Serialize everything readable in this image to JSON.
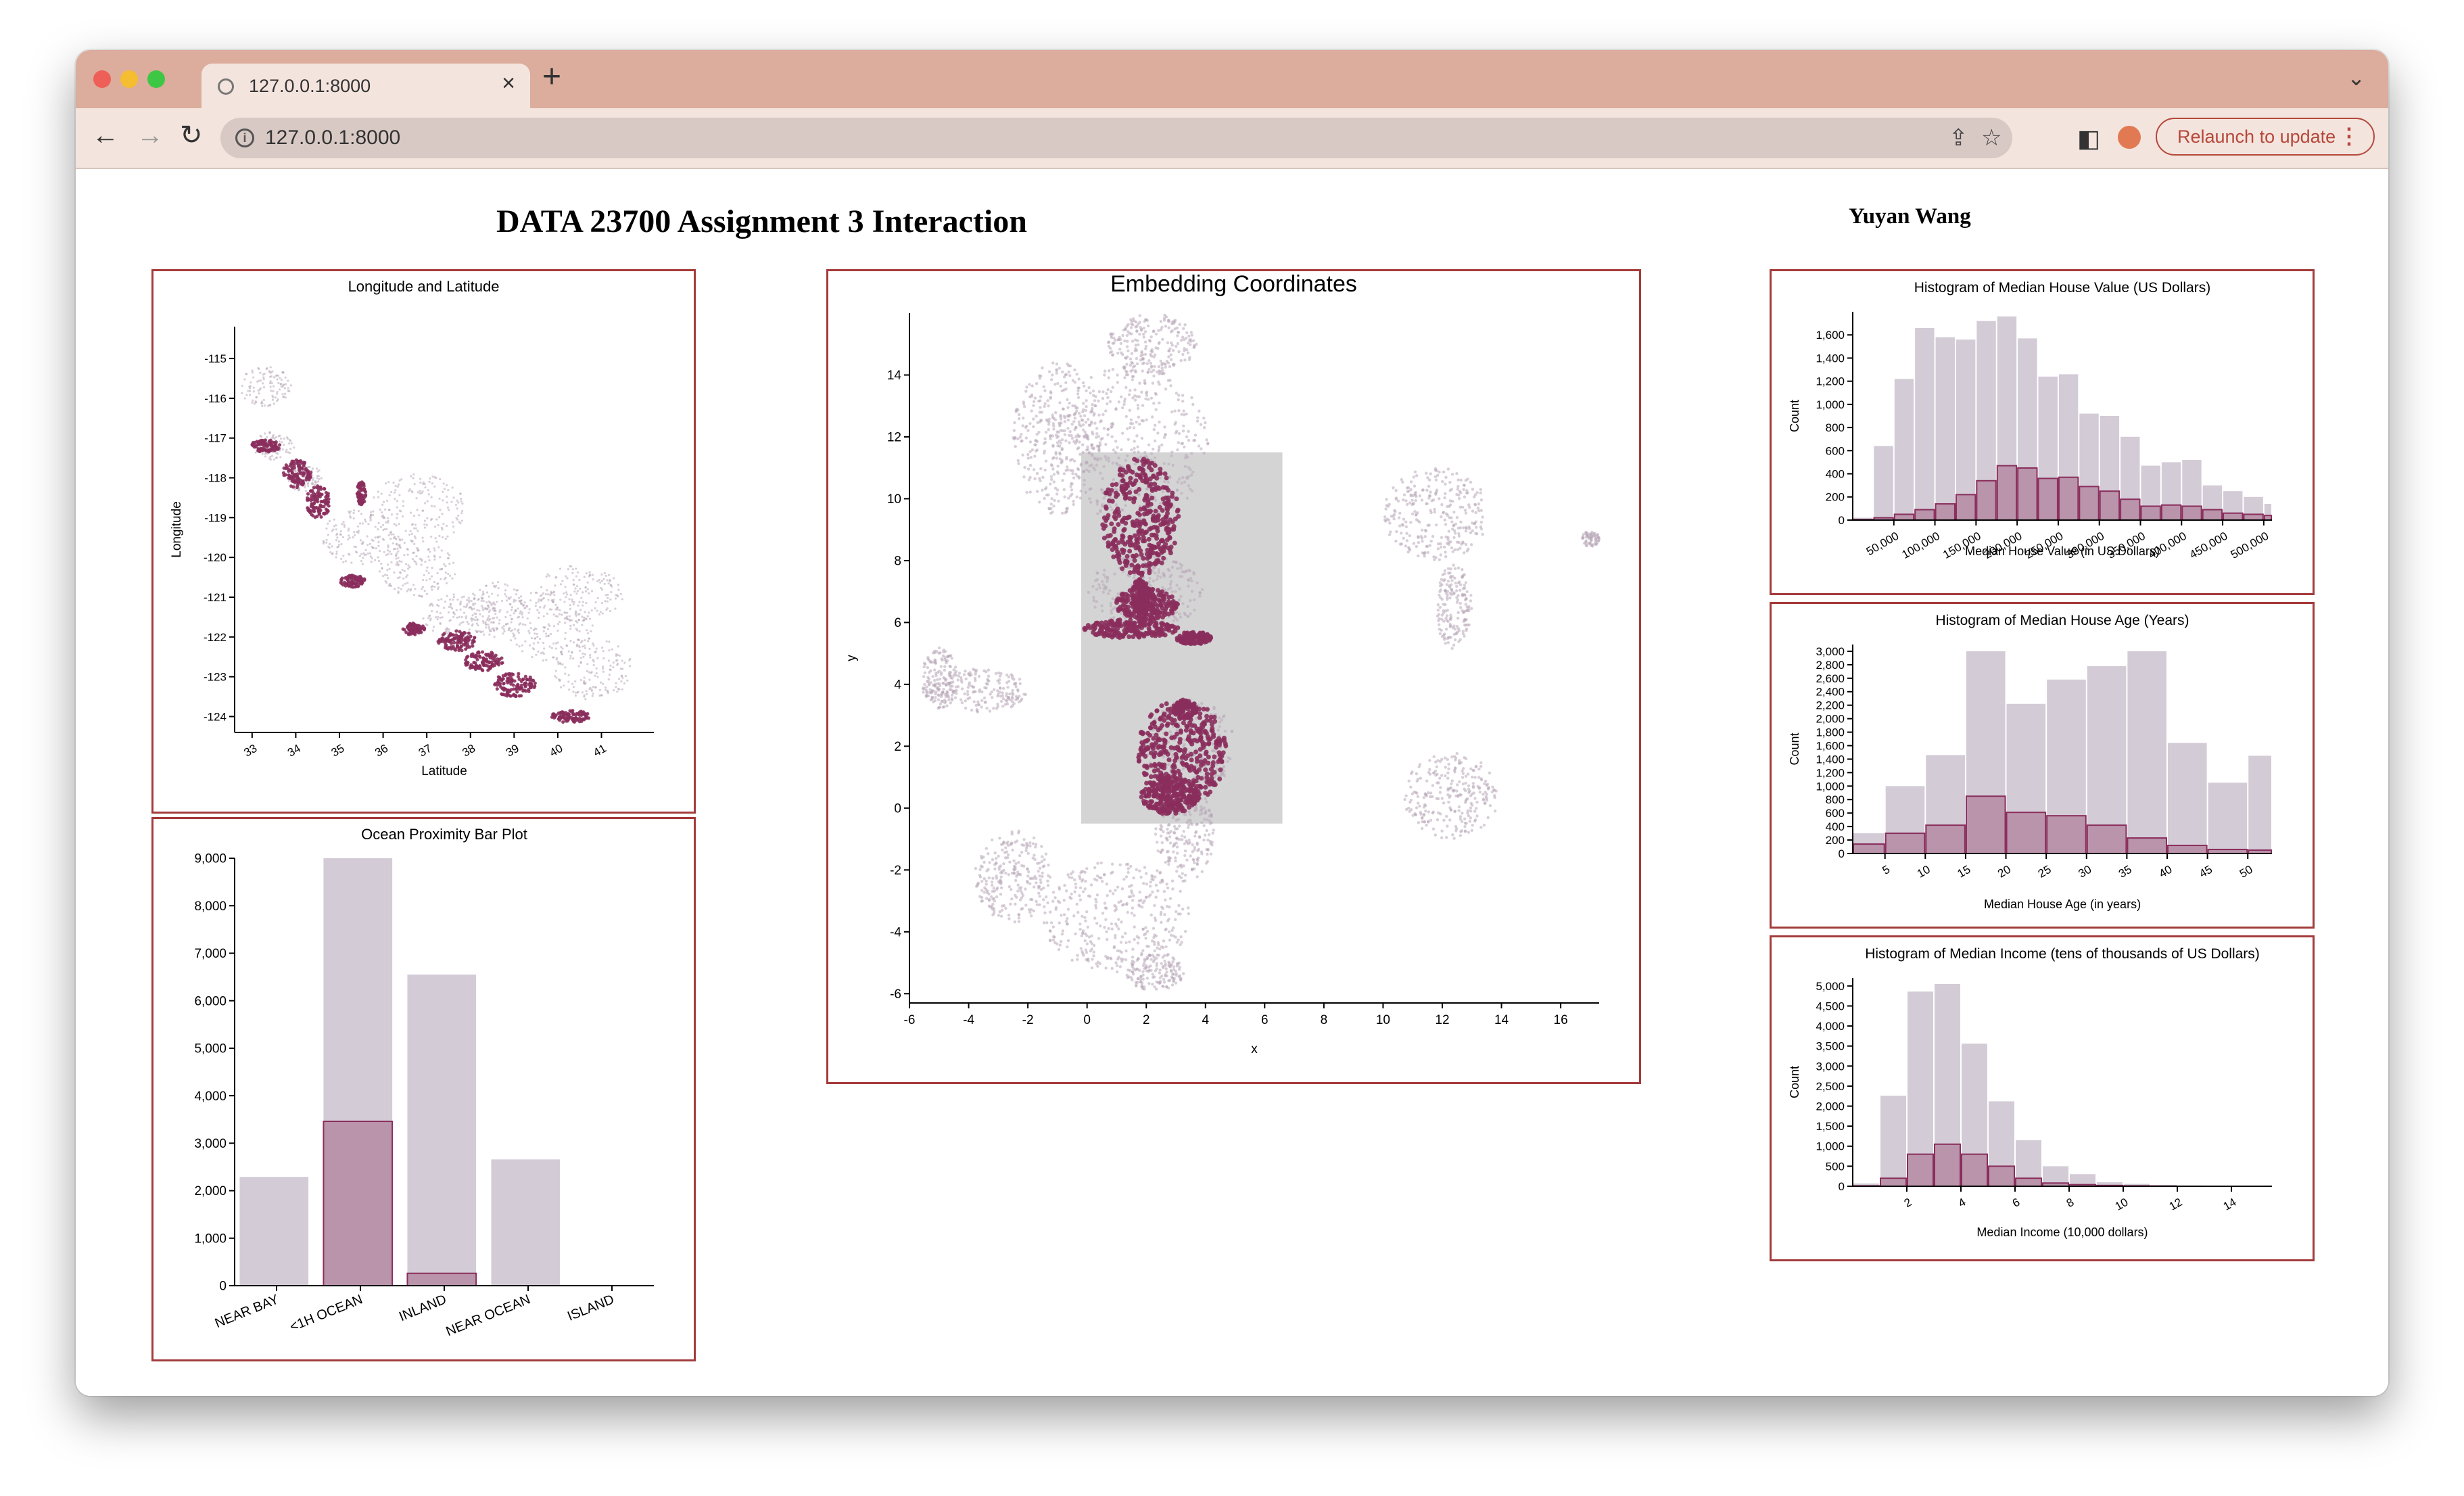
{
  "browser": {
    "tab_title": "127.0.0.1:8000",
    "url": "127.0.0.1:8000",
    "relaunch_label": "Relaunch to update"
  },
  "page": {
    "title": "DATA 23700 Assignment 3 Interaction",
    "author": "Yuyan Wang"
  },
  "colors": {
    "titlebar": "#dcac9c",
    "panel_border": "#a33b3b",
    "base_fill": "#d3cbd6",
    "highlight": "#8a2e5c",
    "brush": "#d4d4d4"
  },
  "chart_data": [
    {
      "id": "longlat",
      "type": "scatter",
      "title": "Longitude and Latitude",
      "xlabel": "Latitude",
      "ylabel": "Longitude",
      "xlim": [
        32.6,
        42.2
      ],
      "ylim": [
        -124.4,
        -114.2
      ],
      "xticks": [
        33,
        34,
        35,
        36,
        37,
        38,
        39,
        40,
        41
      ],
      "yticks": [
        -115,
        -116,
        -117,
        -118,
        -119,
        -120,
        -121,
        -122,
        -123,
        -124
      ],
      "series": [
        {
          "role": "all",
          "regions": [
            [
              33.5,
              -117.2,
              0.5,
              0.35
            ],
            [
              34.2,
              -118.0,
              0.4,
              0.35
            ],
            [
              35.5,
              -119.5,
              0.9,
              0.7
            ],
            [
              36.8,
              -120.3,
              0.9,
              0.7
            ],
            [
              37.8,
              -121.5,
              0.9,
              0.6
            ],
            [
              38.6,
              -121.3,
              0.7,
              0.7
            ],
            [
              39.8,
              -121.7,
              1.0,
              0.9
            ],
            [
              40.8,
              -122.8,
              0.9,
              0.8
            ],
            [
              33.3,
              -115.7,
              0.6,
              0.5
            ],
            [
              36.8,
              -118.8,
              1.1,
              0.9
            ],
            [
              40.5,
              -120.9,
              1.0,
              0.7
            ]
          ]
        },
        {
          "role": "highlight",
          "regions": [
            [
              33.3,
              -117.2,
              0.35,
              0.15
            ],
            [
              34.0,
              -117.9,
              0.35,
              0.35
            ],
            [
              34.5,
              -118.6,
              0.3,
              0.4
            ],
            [
              35.3,
              -120.6,
              0.3,
              0.15
            ],
            [
              37.7,
              -122.1,
              0.45,
              0.25
            ],
            [
              38.3,
              -122.6,
              0.45,
              0.25
            ],
            [
              39.0,
              -123.2,
              0.5,
              0.3
            ],
            [
              40.3,
              -124.0,
              0.45,
              0.15
            ],
            [
              36.7,
              -121.8,
              0.25,
              0.15
            ],
            [
              35.5,
              -118.4,
              0.1,
              0.3
            ]
          ]
        }
      ]
    },
    {
      "id": "ocean",
      "type": "bar",
      "title": "Ocean Proximity Bar Plot",
      "categories": [
        "NEAR BAY",
        "<1H OCEAN",
        "INLAND",
        "NEAR OCEAN",
        "ISLAND"
      ],
      "ylim": [
        0,
        9000
      ],
      "yticks": [
        0,
        1000,
        2000,
        3000,
        4000,
        5000,
        6000,
        7000,
        8000,
        9000
      ],
      "series": [
        {
          "role": "all",
          "values": [
            2290,
            9136,
            6551,
            2658,
            5
          ]
        },
        {
          "role": "selected",
          "values": [
            0,
            3460,
            260,
            0,
            0
          ]
        }
      ]
    },
    {
      "id": "embedding",
      "type": "scatter",
      "title": "Embedding Coordinates",
      "xlabel": "x",
      "ylabel": "y",
      "xlim": [
        -6,
        17.3
      ],
      "ylim": [
        -6.3,
        16
      ],
      "xticks": [
        -6,
        -4,
        -2,
        0,
        2,
        4,
        6,
        8,
        10,
        12,
        14,
        16
      ],
      "yticks": [
        -6,
        -4,
        -2,
        0,
        2,
        4,
        6,
        8,
        10,
        12,
        14
      ],
      "brush": {
        "x": [
          -0.2,
          6.6
        ],
        "y": [
          -0.5,
          11.5
        ]
      },
      "series": [
        {
          "role": "all",
          "regions": [
            [
              1.5,
              11.8,
              2.6,
              2.6
            ],
            [
              2.2,
              15.0,
              1.5,
              1.0
            ],
            [
              -1.0,
              12.0,
              1.5,
              2.5
            ],
            [
              2.0,
              7.0,
              2.0,
              1.2
            ],
            [
              -3.6,
              3.8,
              1.6,
              0.7
            ],
            [
              -5.0,
              4.2,
              0.6,
              1.0
            ],
            [
              3.5,
              2.0,
              1.5,
              1.5
            ],
            [
              3.3,
              -0.8,
              1.0,
              1.6
            ],
            [
              1.0,
              -3.5,
              2.5,
              1.8
            ],
            [
              -2.5,
              -2.2,
              1.3,
              1.5
            ],
            [
              2.3,
              -5.3,
              1.0,
              0.6
            ],
            [
              11.8,
              9.5,
              1.8,
              1.5
            ],
            [
              12.4,
              6.5,
              0.6,
              1.4
            ],
            [
              12.3,
              0.4,
              1.6,
              1.4
            ]
          ]
        },
        {
          "role": "highlight",
          "regions": [
            [
              1.8,
              9.4,
              1.3,
              1.9
            ],
            [
              2.0,
              6.6,
              1.1,
              0.5
            ],
            [
              1.5,
              5.8,
              1.6,
              0.3
            ],
            [
              3.6,
              5.5,
              0.6,
              0.2
            ],
            [
              1.8,
              6.8,
              0.3,
              0.6
            ],
            [
              3.2,
              1.8,
              1.5,
              1.7
            ],
            [
              2.8,
              0.4,
              1.0,
              0.6
            ],
            [
              3.3,
              3.2,
              0.4,
              0.3
            ]
          ]
        },
        {
          "role": "outlier",
          "regions": [
            [
              17.0,
              8.7,
              0.3,
              0.25
            ]
          ]
        }
      ]
    },
    {
      "id": "house_value",
      "type": "bar",
      "title": "Histogram of Median House Value (US Dollars)",
      "xlabel": "Median House Value (in US Dollars)",
      "ylabel": "Count",
      "xlim": [
        0,
        510000
      ],
      "ylim": [
        0,
        1800
      ],
      "xticks": [
        50000,
        100000,
        150000,
        200000,
        250000,
        300000,
        350000,
        400000,
        450000,
        500000
      ],
      "yticks": [
        0,
        200,
        400,
        600,
        800,
        1000,
        1200,
        1400,
        1600
      ],
      "bin_width": 25000,
      "bin_start": 0,
      "series": [
        {
          "role": "all",
          "values": [
            20,
            640,
            1220,
            1660,
            1580,
            1560,
            1720,
            1760,
            1570,
            1240,
            1260,
            920,
            900,
            720,
            470,
            500,
            520,
            300,
            250,
            200,
            140,
            100,
            80
          ]
        },
        {
          "role": "selected",
          "values": [
            5,
            20,
            50,
            90,
            140,
            220,
            340,
            470,
            450,
            360,
            370,
            290,
            250,
            180,
            120,
            130,
            120,
            90,
            60,
            50,
            40,
            30,
            60
          ]
        }
      ]
    },
    {
      "id": "house_age",
      "type": "bar",
      "title": "Histogram of Median House Age (Years)",
      "xlabel": "Median House Age (in years)",
      "ylabel": "Count",
      "xlim": [
        1,
        53
      ],
      "ylim": [
        0,
        3100
      ],
      "xticks": [
        5,
        10,
        15,
        20,
        25,
        30,
        35,
        40,
        45,
        50
      ],
      "yticks": [
        0,
        200,
        400,
        600,
        800,
        1000,
        1200,
        1400,
        1600,
        1800,
        2000,
        2200,
        2400,
        2600,
        2800,
        3000
      ],
      "bin_width": 5,
      "bin_start": 0,
      "series": [
        {
          "role": "all",
          "values": [
            300,
            1000,
            1460,
            3000,
            2220,
            2580,
            2780,
            3000,
            1640,
            1050,
            1450
          ]
        },
        {
          "role": "selected",
          "values": [
            140,
            300,
            420,
            850,
            610,
            560,
            420,
            230,
            120,
            60,
            50
          ]
        }
      ]
    },
    {
      "id": "income",
      "type": "bar",
      "title": "Histogram of Median Income (tens of thousands of US Dollars)",
      "xlabel": "Median Income (10,000 dollars)",
      "ylabel": "Count",
      "xlim": [
        0,
        15.5
      ],
      "ylim": [
        0,
        5200
      ],
      "xticks": [
        2,
        4,
        6,
        8,
        10,
        12,
        14
      ],
      "yticks": [
        0,
        500,
        1000,
        1500,
        2000,
        2500,
        3000,
        3500,
        4000,
        4500,
        5000
      ],
      "bin_width": 1,
      "bin_start": 0,
      "series": [
        {
          "role": "all",
          "values": [
            70,
            2260,
            4860,
            5050,
            3560,
            2120,
            1150,
            500,
            300,
            100,
            60,
            30,
            20,
            10,
            5
          ]
        },
        {
          "role": "selected",
          "values": [
            10,
            200,
            800,
            1050,
            800,
            500,
            200,
            80,
            40,
            20,
            10,
            5,
            0,
            0,
            0
          ]
        }
      ]
    }
  ]
}
